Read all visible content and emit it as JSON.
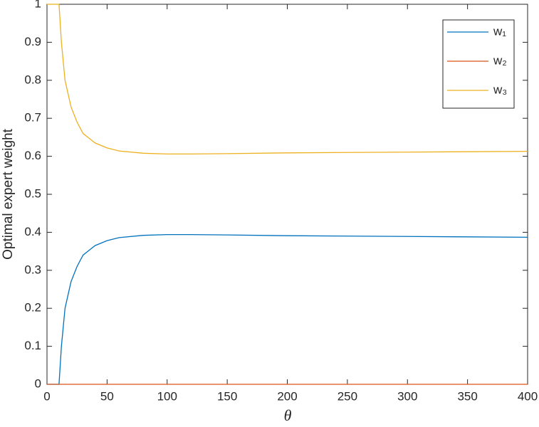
{
  "chart_data": {
    "type": "line",
    "xlabel": "θ",
    "ylabel": "Optimal expert weight",
    "x": [
      0,
      5,
      10,
      12,
      15,
      20,
      25,
      30,
      40,
      50,
      60,
      80,
      100,
      120,
      150,
      200,
      250,
      300,
      350,
      400
    ],
    "series": [
      {
        "name": "w₁",
        "color": "#0072BD",
        "values": [
          0,
          0,
          0,
          0.1,
          0.2,
          0.27,
          0.31,
          0.34,
          0.365,
          0.378,
          0.386,
          0.392,
          0.394,
          0.394,
          0.393,
          0.391,
          0.39,
          0.389,
          0.388,
          0.387
        ]
      },
      {
        "name": "w₂",
        "color": "#D95319",
        "values": [
          0,
          0,
          0,
          0,
          0,
          0,
          0,
          0,
          0,
          0,
          0,
          0,
          0,
          0,
          0,
          0,
          0,
          0,
          0,
          0
        ]
      },
      {
        "name": "w₃",
        "color": "#EDB120",
        "values": [
          1,
          1,
          1,
          0.9,
          0.8,
          0.73,
          0.69,
          0.66,
          0.635,
          0.622,
          0.614,
          0.608,
          0.606,
          0.606,
          0.607,
          0.609,
          0.61,
          0.611,
          0.612,
          0.613
        ]
      }
    ],
    "xlim": [
      0,
      400
    ],
    "xticks": [
      0,
      50,
      100,
      150,
      200,
      250,
      300,
      350,
      400
    ],
    "ylim": [
      0,
      1
    ],
    "yticks": [
      0,
      0.1,
      0.2,
      0.3,
      0.4,
      0.5,
      0.6,
      0.7,
      0.8,
      0.9,
      1
    ],
    "grid": false,
    "legend": "northeast"
  }
}
